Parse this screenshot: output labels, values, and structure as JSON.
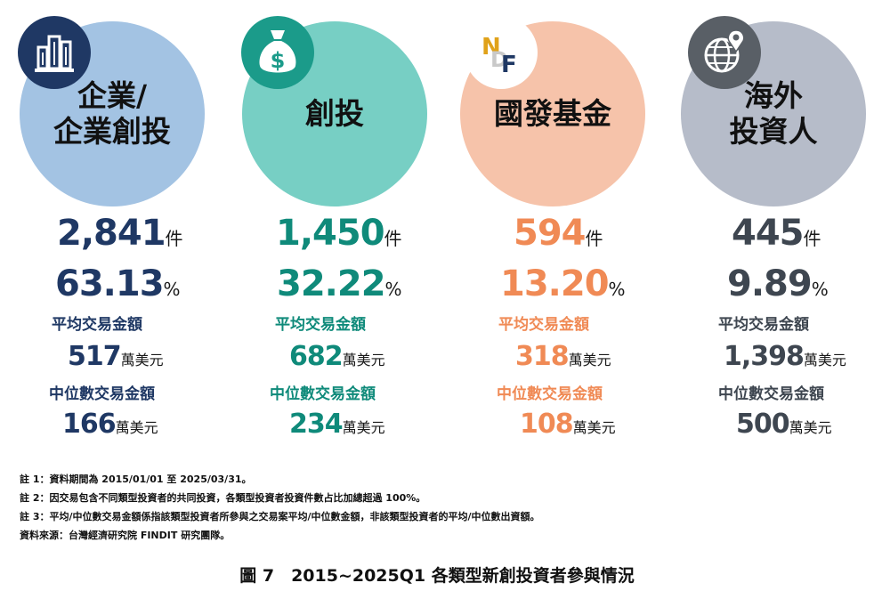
{
  "chart_data": {
    "type": "table",
    "title": "",
    "categories": [
      {
        "title_lines": [
          "企業/",
          "企業創投"
        ],
        "icon": "building-icon",
        "count": "2,841",
        "count_unit": "件",
        "share": "63.13",
        "share_unit": "%",
        "avg_label": "平均交易金額",
        "avg_value": "517",
        "avg_unit": "萬美元",
        "median_label": "中位數交易金額",
        "median_value": "166",
        "median_unit": "萬美元",
        "circle_color": "#a3c3e3",
        "badge_color": "#1f3864",
        "value_color": "#1f3864",
        "label_color": "#1f3864"
      },
      {
        "title_lines": [
          "創投"
        ],
        "icon": "money-bag-icon",
        "count": "1,450",
        "count_unit": "件",
        "share": "32.22",
        "share_unit": "%",
        "avg_label": "平均交易金額",
        "avg_value": "682",
        "avg_unit": "萬美元",
        "median_label": "中位數交易金額",
        "median_value": "234",
        "median_unit": "萬美元",
        "circle_color": "#77cfc4",
        "badge_color": "#1b9b8a",
        "value_color": "#0f8a7a",
        "label_color": "#0f8a7a"
      },
      {
        "title_lines": [
          "國發基金"
        ],
        "icon": "ndf-logo-icon",
        "count": "594",
        "count_unit": "件",
        "share": "13.20",
        "share_unit": "%",
        "avg_label": "平均交易金額",
        "avg_value": "318",
        "avg_unit": "萬美元",
        "median_label": "中位數交易金額",
        "median_value": "108",
        "median_unit": "萬美元",
        "circle_color": "#f6c3aa",
        "badge_color": "#ffffff",
        "value_color": "#f08a55",
        "label_color": "#f08a55"
      },
      {
        "title_lines": [
          "海外",
          "投資人"
        ],
        "icon": "globe-pin-icon",
        "count": "445",
        "count_unit": "件",
        "share": "9.89",
        "share_unit": "%",
        "avg_label": "平均交易金額",
        "avg_value": "1,398",
        "avg_unit": "萬美元",
        "median_label": "中位數交易金額",
        "median_value": "500",
        "median_unit": "萬美元",
        "circle_color": "#b6bcc9",
        "badge_color": "#595f66",
        "value_color": "#3e4650",
        "label_color": "#3e4650"
      }
    ]
  },
  "ndf_logo_letters": [
    "N",
    "D",
    "F"
  ],
  "notes": [
    "註 1：資料期間為 2015/01/01 至 2025/03/31。",
    "註 2：因交易包含不同類型投資者的共同投資，各類型投資者投資件數占比加總超過 100%。",
    "註 3：平均/中位數交易金額係指該類型投資者所參與之交易案平均/中位數金額，非該類型投資者的平均/中位數出資額。",
    "資料來源：台灣經濟研究院 FINDIT 研究團隊。"
  ],
  "caption": "圖 7　2015~2025Q1 各類型新創投資者參與情況"
}
